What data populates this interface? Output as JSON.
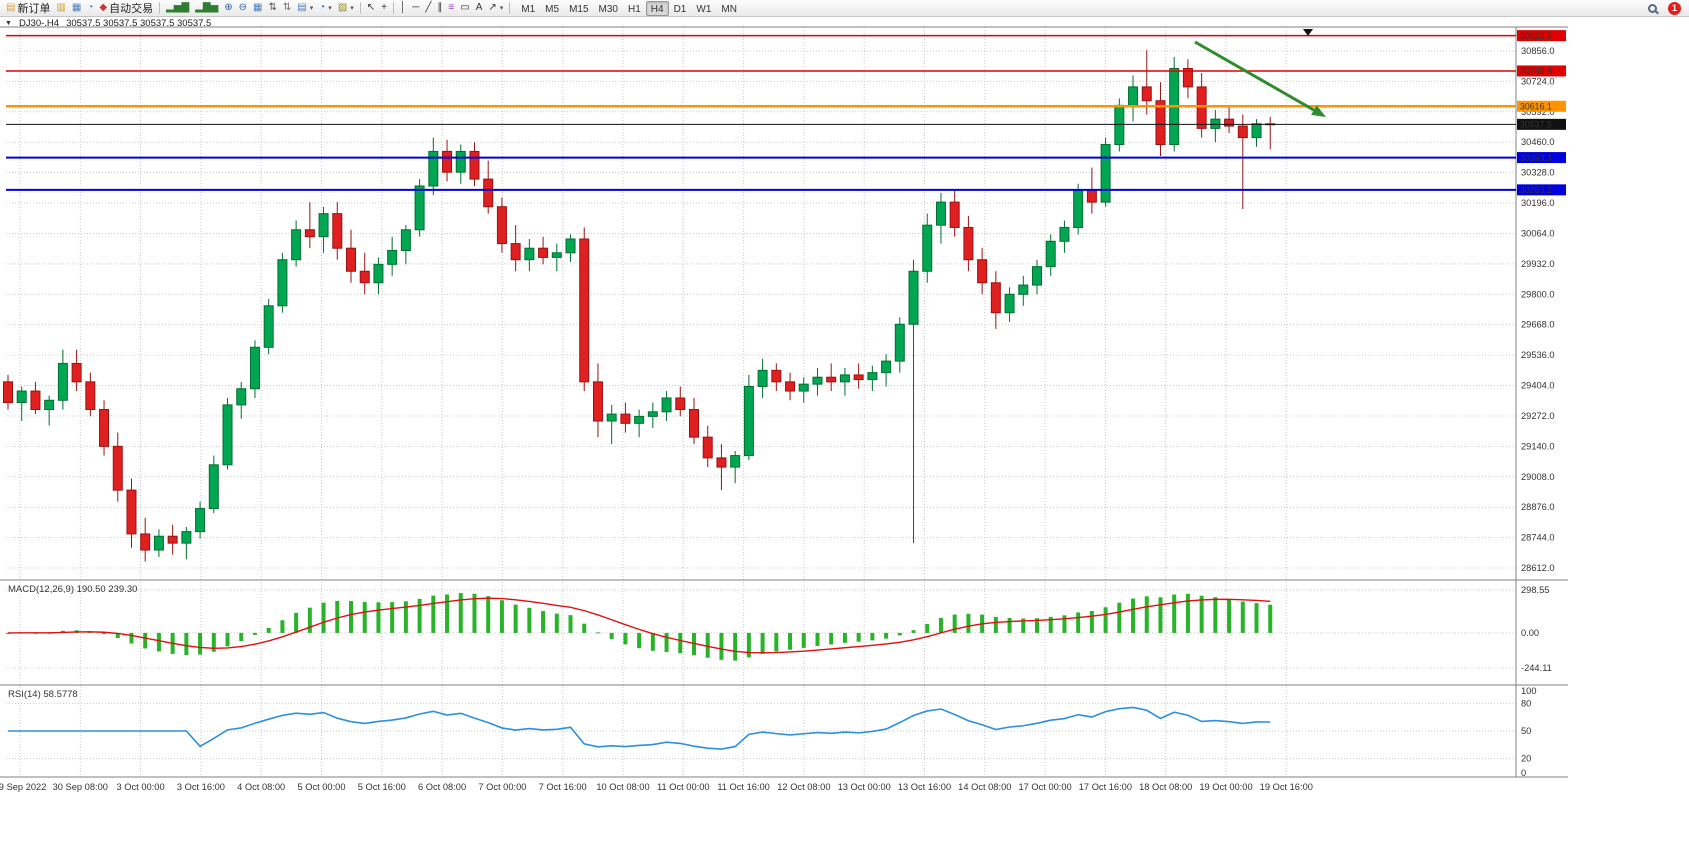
{
  "window": {
    "badge_count": "1"
  },
  "toolbar": {
    "buttons": [
      {
        "name": "new-order-button",
        "icon": "new-order-icon",
        "glyph": "▤",
        "color": "#d8a33c",
        "label": "新订单"
      },
      {
        "name": "market-watch-button",
        "icon": "market-watch-icon",
        "glyph": "▥",
        "color": "#c9a227"
      },
      {
        "name": "data-window-button",
        "icon": "data-window-icon",
        "glyph": "▦",
        "color": "#4a7dc0"
      },
      {
        "name": "navigator-button",
        "icon": "navigator-icon",
        "glyph": "◔",
        "color": "#4a7dc0"
      },
      {
        "name": "autotrading-button",
        "icon": "autotrading-icon",
        "glyph": "◆",
        "color": "#cf3333",
        "label": "自动交易"
      },
      {
        "sep": true
      },
      {
        "name": "indicator-window-button",
        "icon": "bar-chart-icon",
        "glyph": "▂▅▇",
        "color": "#2e7d32"
      },
      {
        "name": "chart-window-button",
        "icon": "candlestick-chart-icon",
        "glyph": "▂▇▅",
        "color": "#2e7d32"
      },
      {
        "name": "zoom-in-button",
        "icon": "zoom-in-icon",
        "glyph": "⊕",
        "color": "#2f5e9e"
      },
      {
        "name": "zoom-out-button",
        "icon": "zoom-out-icon",
        "glyph": "⊖",
        "color": "#2f5e9e"
      },
      {
        "name": "tile-windows-button",
        "icon": "tile-windows-icon",
        "glyph": "▦",
        "color": "#4a7dc0"
      },
      {
        "name": "arrange-ascending-button",
        "icon": "sort-ascending-icon",
        "glyph": "⇅",
        "color": "#555555"
      },
      {
        "name": "arrange-descending-button",
        "icon": "sort-descending-icon",
        "glyph": "⇅",
        "color": "#777777"
      },
      {
        "name": "new-chart-button",
        "icon": "new-chart-icon",
        "glyph": "▤",
        "color": "#4a7dc0",
        "dropdown": true
      },
      {
        "name": "profiles-button",
        "icon": "profiles-icon",
        "glyph": "◔",
        "color": "#2f5e9e",
        "dropdown": true
      },
      {
        "name": "templates-button",
        "icon": "templates-icon",
        "glyph": "▧",
        "color": "#8a8a33",
        "dropdown": true
      },
      {
        "sep": true
      },
      {
        "name": "cursor-button",
        "icon": "cursor-icon",
        "glyph": "↖",
        "color": "#333333"
      },
      {
        "name": "crosshair-button",
        "icon": "crosshair-icon",
        "glyph": "+",
        "color": "#333333"
      },
      {
        "sep": true
      },
      {
        "name": "vertical-line-button",
        "icon": "vertical-line-icon",
        "glyph": "│",
        "color": "#333333"
      },
      {
        "name": "horizontal-line-button",
        "icon": "horizontal-line-icon",
        "glyph": "─",
        "color": "#333333"
      },
      {
        "name": "trendline-button",
        "icon": "trendline-icon",
        "glyph": "╱",
        "color": "#333333"
      },
      {
        "name": "channel-button",
        "icon": "equidistant-channel-icon",
        "glyph": "∥",
        "color": "#333333"
      },
      {
        "name": "fibonacci-button",
        "icon": "fibonacci-icon",
        "glyph": "≡",
        "color": "#9a3bbf"
      },
      {
        "name": "shapes-button",
        "icon": "shapes-icon",
        "glyph": "▭",
        "color": "#333333"
      },
      {
        "name": "text-button",
        "icon": "text-icon",
        "glyph": "A",
        "color": "#333333"
      },
      {
        "name": "arrows-button",
        "icon": "arrows-icon",
        "glyph": "↗",
        "color": "#333333",
        "dropdown": true
      },
      {
        "sep": true
      }
    ],
    "timeframes": [
      "M1",
      "M5",
      "M15",
      "M30",
      "H1",
      "H4",
      "D1",
      "W1",
      "MN"
    ],
    "active_timeframe": "H4"
  },
  "chart": {
    "symbol_period": "DJ30-.H4",
    "ohlc_display": "30537.5 30537.5 30537.5 30537.5"
  },
  "chart_data": {
    "type": "candlestick",
    "symbol": "DJ30-",
    "timeframe": "H4",
    "ylim": [
      28560,
      30960
    ],
    "price_axis": [
      "30856.0",
      "30724.0",
      "30592.0",
      "30460.0",
      "30328.0",
      "30196.0",
      "30064.0",
      "29932.0",
      "29800.0",
      "29668.0",
      "29536.0",
      "29404.0",
      "29272.0",
      "29140.0",
      "29008.0",
      "28876.0",
      "28744.0",
      "28612.0"
    ],
    "time_axis": [
      "29 Sep 2022",
      "30 Sep 08:00",
      "3 Oct 00:00",
      "3 Oct 16:00",
      "4 Oct 08:00",
      "5 Oct 00:00",
      "5 Oct 16:00",
      "6 Oct 08:00",
      "7 Oct 00:00",
      "7 Oct 16:00",
      "10 Oct 08:00",
      "11 Oct 00:00",
      "11 Oct 16:00",
      "12 Oct 08:00",
      "13 Oct 00:00",
      "13 Oct 16:00",
      "14 Oct 08:00",
      "17 Oct 00:00",
      "17 Oct 16:00",
      "18 Oct 08:00",
      "19 Oct 00:00",
      "19 Oct 16:00"
    ],
    "candles": [
      [
        29420,
        29450,
        29300,
        29330
      ],
      [
        29330,
        29400,
        29250,
        29380
      ],
      [
        29380,
        29420,
        29280,
        29300
      ],
      [
        29300,
        29360,
        29230,
        29340
      ],
      [
        29340,
        29560,
        29300,
        29500
      ],
      [
        29500,
        29560,
        29380,
        29420
      ],
      [
        29420,
        29460,
        29270,
        29300
      ],
      [
        29300,
        29340,
        29100,
        29140
      ],
      [
        29140,
        29200,
        28900,
        28950
      ],
      [
        28950,
        29000,
        28700,
        28760
      ],
      [
        28760,
        28830,
        28640,
        28690
      ],
      [
        28690,
        28780,
        28660,
        28750
      ],
      [
        28750,
        28800,
        28670,
        28720
      ],
      [
        28720,
        28790,
        28650,
        28770
      ],
      [
        28770,
        28900,
        28740,
        28870
      ],
      [
        28870,
        29100,
        28850,
        29060
      ],
      [
        29060,
        29350,
        29040,
        29320
      ],
      [
        29320,
        29420,
        29260,
        29390
      ],
      [
        29390,
        29600,
        29350,
        29570
      ],
      [
        29570,
        29780,
        29540,
        29750
      ],
      [
        29750,
        29980,
        29720,
        29950
      ],
      [
        29950,
        30120,
        29920,
        30080
      ],
      [
        30080,
        30200,
        30000,
        30050
      ],
      [
        30050,
        30180,
        29980,
        30150
      ],
      [
        30150,
        30200,
        29950,
        30000
      ],
      [
        30000,
        30080,
        29850,
        29900
      ],
      [
        29900,
        29980,
        29800,
        29850
      ],
      [
        29850,
        29960,
        29800,
        29930
      ],
      [
        29930,
        30050,
        29880,
        29990
      ],
      [
        29990,
        30100,
        29930,
        30080
      ],
      [
        30080,
        30300,
        30050,
        30270
      ],
      [
        30270,
        30480,
        30230,
        30420
      ],
      [
        30420,
        30470,
        30290,
        30330
      ],
      [
        30330,
        30450,
        30280,
        30420
      ],
      [
        30420,
        30460,
        30270,
        30300
      ],
      [
        30300,
        30380,
        30150,
        30180
      ],
      [
        30180,
        30220,
        29980,
        30020
      ],
      [
        30020,
        30100,
        29900,
        29950
      ],
      [
        29950,
        30040,
        29900,
        30000
      ],
      [
        30000,
        30050,
        29930,
        29960
      ],
      [
        29960,
        30020,
        29900,
        29980
      ],
      [
        29980,
        30060,
        29940,
        30040
      ],
      [
        30040,
        30090,
        29380,
        29420
      ],
      [
        29420,
        29500,
        29180,
        29250
      ],
      [
        29250,
        29320,
        29150,
        29280
      ],
      [
        29280,
        29330,
        29200,
        29240
      ],
      [
        29240,
        29300,
        29180,
        29270
      ],
      [
        29270,
        29330,
        29220,
        29290
      ],
      [
        29290,
        29380,
        29250,
        29350
      ],
      [
        29350,
        29400,
        29270,
        29300
      ],
      [
        29300,
        29350,
        29150,
        29180
      ],
      [
        29180,
        29230,
        29050,
        29090
      ],
      [
        29090,
        29150,
        28950,
        29050
      ],
      [
        29050,
        29120,
        28980,
        29100
      ],
      [
        29100,
        29450,
        29080,
        29400
      ],
      [
        29400,
        29520,
        29350,
        29470
      ],
      [
        29470,
        29500,
        29380,
        29420
      ],
      [
        29420,
        29460,
        29340,
        29380
      ],
      [
        29380,
        29440,
        29330,
        29410
      ],
      [
        29410,
        29480,
        29360,
        29440
      ],
      [
        29440,
        29500,
        29380,
        29420
      ],
      [
        29420,
        29480,
        29360,
        29450
      ],
      [
        29450,
        29500,
        29390,
        29430
      ],
      [
        29430,
        29490,
        29380,
        29460
      ],
      [
        29460,
        29540,
        29400,
        29510
      ],
      [
        29510,
        29700,
        29460,
        29670
      ],
      [
        29670,
        29950,
        28720,
        29900
      ],
      [
        29900,
        30150,
        29850,
        30100
      ],
      [
        30100,
        30240,
        30020,
        30200
      ],
      [
        30200,
        30250,
        30050,
        30090
      ],
      [
        30090,
        30140,
        29900,
        29950
      ],
      [
        29950,
        30000,
        29800,
        29850
      ],
      [
        29850,
        29900,
        29650,
        29720
      ],
      [
        29720,
        29830,
        29680,
        29800
      ],
      [
        29800,
        29880,
        29750,
        29840
      ],
      [
        29840,
        29950,
        29800,
        29920
      ],
      [
        29920,
        30060,
        29880,
        30030
      ],
      [
        30030,
        30120,
        29980,
        30090
      ],
      [
        30090,
        30280,
        30060,
        30250
      ],
      [
        30250,
        30350,
        30150,
        30200
      ],
      [
        30200,
        30480,
        30180,
        30450
      ],
      [
        30450,
        30650,
        30420,
        30620
      ],
      [
        30620,
        30750,
        30550,
        30700
      ],
      [
        30700,
        30860,
        30580,
        30640
      ],
      [
        30640,
        30720,
        30400,
        30450
      ],
      [
        30450,
        30830,
        30420,
        30780
      ],
      [
        30780,
        30820,
        30650,
        30700
      ],
      [
        30700,
        30760,
        30480,
        30520
      ],
      [
        30520,
        30600,
        30460,
        30560
      ],
      [
        30560,
        30620,
        30500,
        30530
      ],
      [
        30530,
        30580,
        30170,
        30480
      ],
      [
        30480,
        30560,
        30440,
        30540
      ],
      [
        30540,
        30570,
        30430,
        30537.5
      ]
    ],
    "horizontal_lines": [
      {
        "price": 30922.5,
        "label": "30922.5",
        "color": "#e00000",
        "width": 1.5
      },
      {
        "price": 30769.3,
        "label": "30769.3",
        "color": "#e00000",
        "width": 1.5
      },
      {
        "price": 30616.1,
        "label": "30616.1",
        "color": "#ff9400",
        "width": 2.5
      },
      {
        "price": 30393.3,
        "label": "30393.3",
        "color": "#0000dd",
        "width": 2
      },
      {
        "price": 30253.2,
        "label": "30253.2",
        "color": "#0000dd",
        "width": 2
      }
    ],
    "current_price": {
      "price": 30537.5,
      "label": "30537.5",
      "color": "#111111"
    },
    "trend_arrow": {
      "from": [
        1195,
        42
      ],
      "to": [
        1326,
        117
      ],
      "color": "#2e8b2e",
      "width": 3
    },
    "indicators": [
      {
        "type": "macd",
        "label": "MACD(12,26,9)",
        "values": "190.50 239.30",
        "params": [
          12,
          26,
          9
        ],
        "axis": [
          "298.55",
          "0.00",
          "-244.11"
        ],
        "levels": [
          298.55,
          0,
          -244.11
        ]
      },
      {
        "type": "rsi",
        "label": "RSI(14)",
        "value": "58.5778",
        "period": 14,
        "axis": [
          "100",
          "80",
          "50",
          "20",
          "0"
        ],
        "levels": [
          80,
          50,
          20
        ]
      }
    ],
    "colors": {
      "bull": "#00a651",
      "bull_border": "#00702f",
      "bear": "#e02020",
      "bear_border": "#991212",
      "grid": "#c9c9c9",
      "border": "#808080",
      "macd_hist": "#29b329",
      "macd_signal": "#e01010",
      "rsi_line": "#2d8fe0",
      "arrow": "#2e8b2e"
    }
  }
}
